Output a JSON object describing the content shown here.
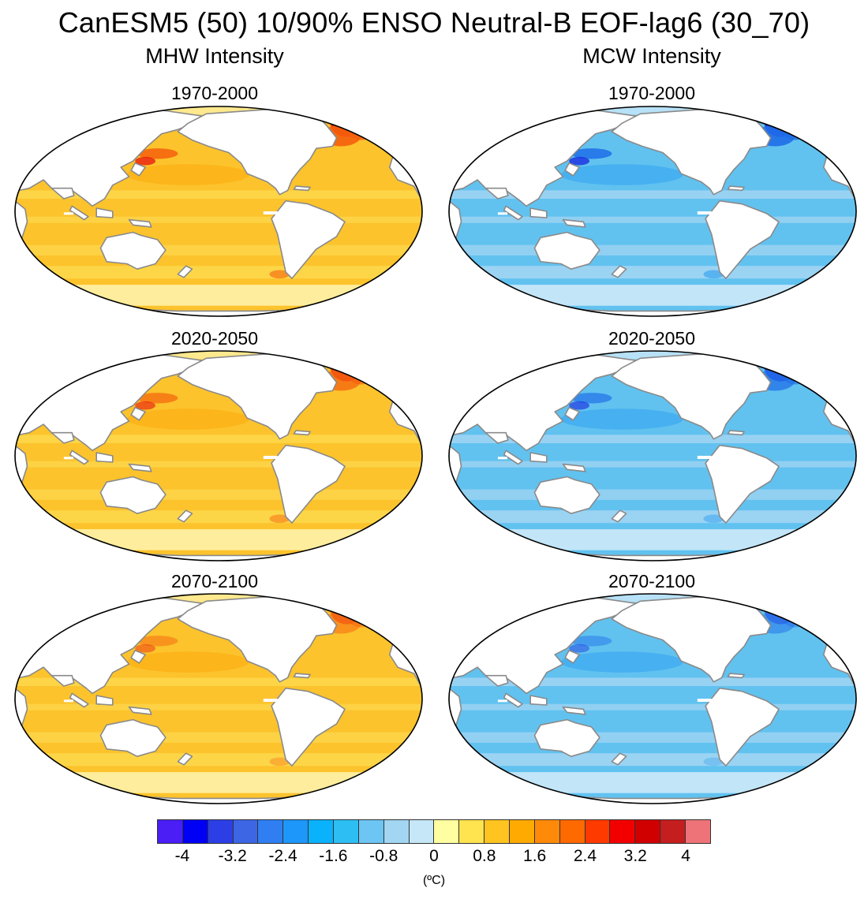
{
  "title": "CanESM5 (50) 10/90% ENSO Neutral-B EOF-lag6 (30_70)",
  "columns": [
    {
      "title": "MHW Intensity",
      "kind": "warm"
    },
    {
      "title": "MCW Intensity",
      "kind": "cold"
    }
  ],
  "periods": [
    "1970-2000",
    "2020-2050",
    "2070-2100"
  ],
  "colorbar": {
    "colors": [
      "#4a1ef5",
      "#0000f4",
      "#2c3fe6",
      "#3d66e4",
      "#2f7ff3",
      "#1d97f9",
      "#0ab1fb",
      "#2dbff4",
      "#6cc5f2",
      "#a2d6f2",
      "#c6e7f7",
      "#fffea0",
      "#ffe34f",
      "#ffc41f",
      "#ffaa00",
      "#ff8a0a",
      "#ff6a00",
      "#ff3a00",
      "#f20000",
      "#d10000",
      "#c41e1e",
      "#ee7378"
    ],
    "tick_labels": [
      "-4",
      "-3.2",
      "-2.4",
      "-1.6",
      "-0.8",
      "0",
      "0.8",
      "1.6",
      "2.4",
      "3.2",
      "4"
    ],
    "units": "(ºC)"
  },
  "palette": {
    "warm_base": "#fcc32c",
    "warm_light": "#fdd94e",
    "warm_pale": "#fef2a8",
    "warm_mid": "#fba90c",
    "warm_hot": "#f5600c",
    "warm_hottest": "#e81d10",
    "cold_base": "#61c2f0",
    "cold_light": "#a6d6f2",
    "cold_pale": "#cde9f8",
    "cold_mid": "#2d9ef0",
    "cold_strong": "#1f6ee8",
    "cold_strongest": "#1b2de0",
    "land": "#ffffff",
    "coast": "#8a8a8a"
  }
}
